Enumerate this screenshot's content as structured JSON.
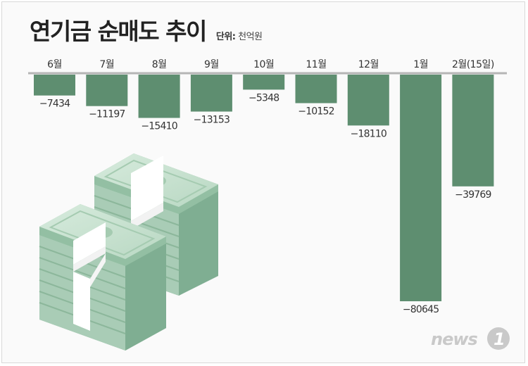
{
  "title": "연기금 순매도 추이",
  "unit_label": "단위:",
  "unit_value": "천억원",
  "logo_text": "news1",
  "colors": {
    "bar": "#5e8e70",
    "baseline": "#b5b5b5",
    "text": "#333333"
  },
  "chart_data": {
    "type": "bar",
    "title": "연기금 순매도 추이",
    "unit": "천억원",
    "categories": [
      "6월",
      "7월",
      "8월",
      "9월",
      "10월",
      "11월",
      "12월",
      "1월",
      "2월(15일)"
    ],
    "values": [
      -7434,
      -11197,
      -15410,
      -13153,
      -5348,
      -10152,
      -18110,
      -80645,
      -39769
    ],
    "value_labels": [
      "−7434",
      "−11197",
      "−15410",
      "−13153",
      "−5348",
      "−10152",
      "−18110",
      "−80645",
      "−39769"
    ],
    "ylim": [
      -80645,
      0
    ],
    "grid": false,
    "legend": "none"
  }
}
